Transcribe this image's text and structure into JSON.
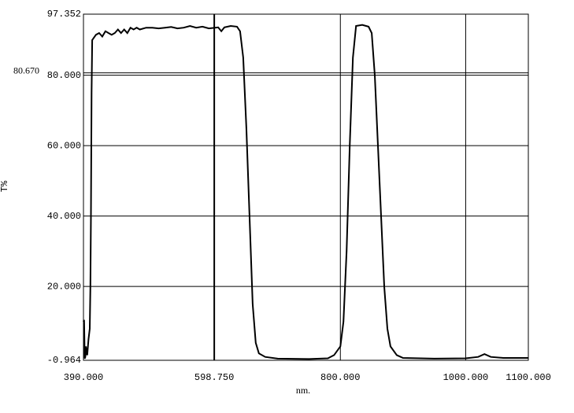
{
  "chart_data": {
    "type": "line",
    "xlabel": "nm.",
    "ylabel": "T%",
    "xlim": [
      390,
      1100
    ],
    "ylim": [
      -0.964,
      97.352
    ],
    "xticks": [
      {
        "value": 390,
        "label": "390.000"
      },
      {
        "value": 800,
        "label": "800.000"
      },
      {
        "value": 1000,
        "label": "1000.000"
      },
      {
        "value": 1100,
        "label": "1100.000"
      }
    ],
    "yticks": [
      {
        "value": -0.964,
        "label": "-0.964"
      },
      {
        "value": 20,
        "label": "20.000"
      },
      {
        "value": 40,
        "label": "40.000"
      },
      {
        "value": 60,
        "label": "60.000"
      },
      {
        "value": 80,
        "label": "80.000"
      },
      {
        "value": 97.352,
        "label": "97.352"
      }
    ],
    "cursor": {
      "x": {
        "value": 598.75,
        "label": "598.750"
      },
      "y": {
        "value": 80.67,
        "label": "80.670"
      }
    },
    "grid": true,
    "series": [
      {
        "color": "#000000",
        "x": [
          390,
          391,
          392,
          393,
          394,
          395,
          396,
          398,
          400,
          401,
          402,
          403,
          404,
          410,
          415,
          420,
          425,
          430,
          435,
          440,
          445,
          450,
          455,
          460,
          465,
          470,
          475,
          480,
          490,
          500,
          510,
          520,
          530,
          540,
          550,
          560,
          570,
          580,
          590,
          600,
          605,
          610,
          615,
          625,
          635,
          640,
          645,
          650,
          655,
          660,
          665,
          670,
          680,
          700,
          750,
          780,
          790,
          800,
          805,
          810,
          815,
          820,
          825,
          835,
          845,
          850,
          855,
          860,
          865,
          870,
          875,
          880,
          890,
          900,
          950,
          1000,
          1020,
          1030,
          1040,
          1060,
          1100
        ],
        "values": [
          10,
          10.5,
          -0.5,
          0,
          3,
          1,
          0.5,
          5,
          8,
          20,
          40,
          75,
          90,
          91.5,
          92,
          91,
          92.5,
          92,
          91.5,
          92,
          93,
          92,
          93,
          92,
          93.5,
          93,
          93.5,
          93,
          93.5,
          93.5,
          93.3,
          93.5,
          93.7,
          93.3,
          93.5,
          94,
          93.5,
          93.8,
          93.3,
          93.5,
          93.6,
          92.5,
          93.6,
          94,
          93.8,
          92.5,
          85,
          65,
          40,
          15,
          4,
          1,
          0,
          -0.5,
          -0.6,
          -0.4,
          0.5,
          3,
          10,
          30,
          60,
          85,
          94,
          94.3,
          93.8,
          92,
          80,
          60,
          40,
          20,
          8,
          3,
          0.5,
          -0.3,
          -0.5,
          -0.4,
          0,
          0.8,
          0,
          -0.3,
          -0.3
        ]
      }
    ]
  }
}
